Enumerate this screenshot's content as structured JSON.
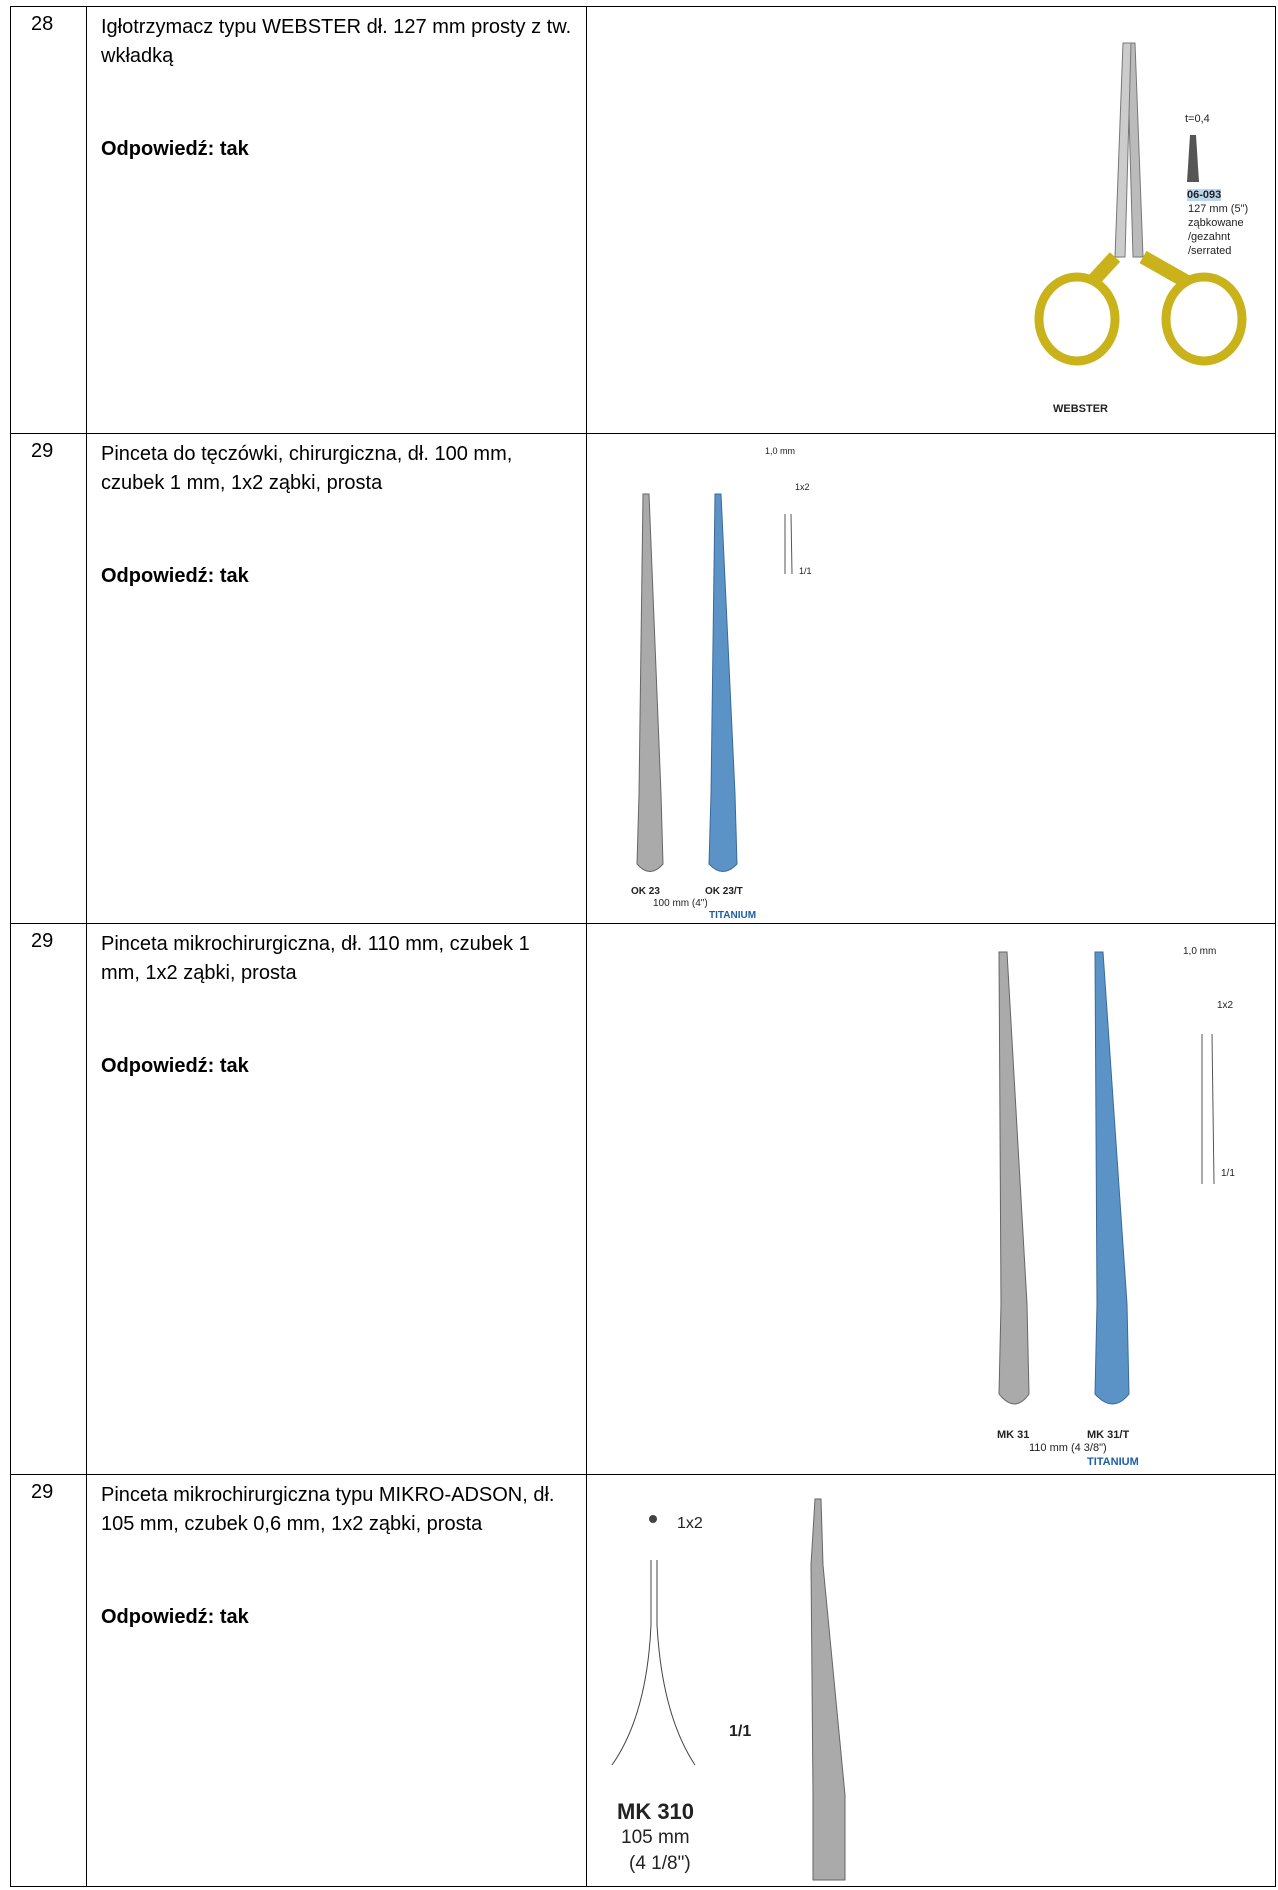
{
  "table": {
    "rows": [
      {
        "number": "28",
        "description": "Igłotrzymacz typu WEBSTER dł. 127 mm prosty z tw. wkładką",
        "answer": "Odpowiedź: tak",
        "image_labels": [
          "t=0,4",
          "06-093",
          "127 mm (5\")",
          "ząbkowane",
          "/gezahnt",
          "/serrated",
          "WEBSTER"
        ]
      },
      {
        "number": "29",
        "description": "Pinceta do tęczówki, chirurgiczna, dł. 100 mm, czubek 1 mm, 1x2 ząbki, prosta",
        "answer": "Odpowiedź: tak",
        "image_labels": [
          "1,0 mm",
          "1x2",
          "1/1",
          "OK 23",
          "OK 23/T",
          "100 mm (4\")",
          "TITANIUM"
        ]
      },
      {
        "number": "29",
        "description": "Pinceta mikrochirurgiczna, dł. 110 mm, czubek 1 mm, 1x2 ząbki, prosta",
        "answer": "Odpowiedź: tak",
        "image_labels": [
          "1,0 mm",
          "1x2",
          "1/1",
          "MK 31",
          "MK 31/T",
          "110 mm (4 3/8\")",
          "TITANIUM"
        ]
      },
      {
        "number": "29",
        "description": "Pinceta mikrochirurgiczna typu MIKRO-ADSON, dł. 105 mm, czubek 0,6 mm, 1x2 ząbki, prosta",
        "answer": "Odpowiedź: tak",
        "image_labels": [
          "1x2",
          "1/1",
          "MK 310",
          "105 mm",
          "(4 1/8\")"
        ]
      }
    ]
  }
}
